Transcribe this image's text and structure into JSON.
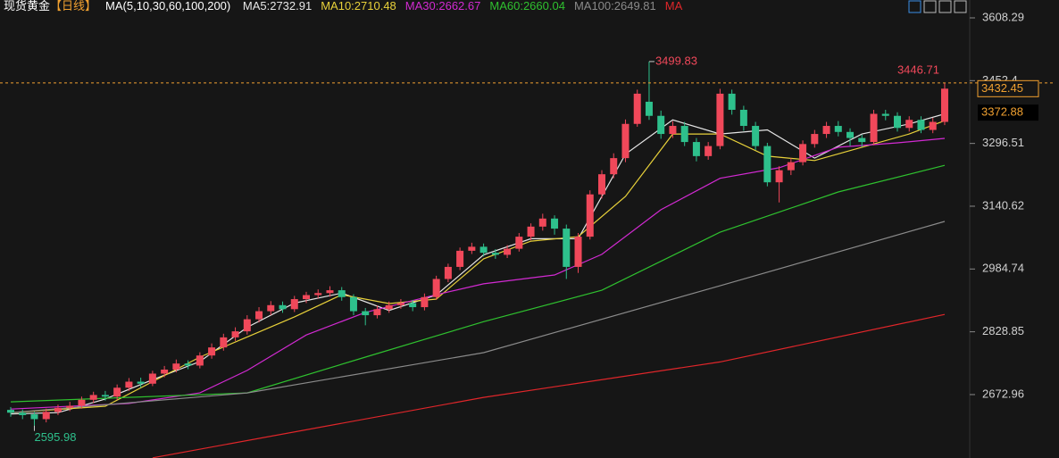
{
  "chart_data": {
    "type": "candlestick",
    "title": "现货黄金",
    "period": "【日线】",
    "indicator": "MA(5,10,30,60,100,200)",
    "up_color": "#f0485a",
    "down_color": "#2ec08c",
    "open": [
      2635,
      2628,
      2624,
      2612,
      2630,
      2640,
      2645,
      2660,
      2672,
      2668,
      2690,
      2705,
      2700,
      2725,
      2735,
      2750,
      2745,
      2770,
      2790,
      2815,
      2830,
      2860,
      2880,
      2895,
      2885,
      2910,
      2920,
      2925,
      2932,
      2915,
      2880,
      2870,
      2885,
      2895,
      2900,
      2890,
      2915,
      2960,
      2990,
      3030,
      3040,
      3025,
      3020,
      3035,
      3065,
      3090,
      3110,
      3085,
      2990,
      3065,
      3170,
      3220,
      3260,
      3345,
      3400,
      3365,
      3320,
      3340,
      3300,
      3265,
      3290,
      3420,
      3380,
      3340,
      3290,
      3200,
      3230,
      3250,
      3295,
      3320,
      3340,
      3325,
      3310,
      3300,
      3370,
      3365,
      3335,
      3355,
      3330,
      3350
    ],
    "high": [
      2642,
      2636,
      2630,
      2638,
      2648,
      2655,
      2668,
      2680,
      2682,
      2698,
      2714,
      2715,
      2732,
      2744,
      2760,
      2758,
      2778,
      2800,
      2824,
      2840,
      2870,
      2890,
      2905,
      2904,
      2918,
      2928,
      2934,
      2942,
      2940,
      2922,
      2888,
      2894,
      2904,
      2910,
      2908,
      2924,
      2968,
      2998,
      3038,
      3050,
      3048,
      3034,
      3044,
      3074,
      3098,
      3122,
      3118,
      3095,
      3074,
      3180,
      3230,
      3272,
      3356,
      3430,
      3499.83,
      3378,
      3352,
      3350,
      3310,
      3300,
      3432,
      3430,
      3390,
      3350,
      3298,
      3240,
      3260,
      3304,
      3330,
      3350,
      3352,
      3334,
      3318,
      3380,
      3380,
      3374,
      3364,
      3364,
      3360,
      3446.71
    ],
    "low": [
      2618,
      2612,
      2595.98,
      2604,
      2622,
      2632,
      2638,
      2652,
      2658,
      2660,
      2682,
      2690,
      2694,
      2716,
      2728,
      2736,
      2738,
      2762,
      2782,
      2806,
      2822,
      2852,
      2870,
      2876,
      2878,
      2900,
      2912,
      2916,
      2906,
      2870,
      2845,
      2862,
      2876,
      2886,
      2880,
      2882,
      2908,
      2952,
      2982,
      3022,
      3016,
      3010,
      3012,
      3028,
      3056,
      3080,
      3070,
      2960,
      2975,
      3058,
      3160,
      3210,
      3250,
      3338,
      3355,
      3308,
      3310,
      3290,
      3252,
      3256,
      3282,
      3368,
      3328,
      3280,
      3190,
      3150,
      3218,
      3242,
      3286,
      3310,
      3314,
      3290,
      3288,
      3292,
      3354,
      3326,
      3326,
      3322,
      3322,
      3342
    ],
    "close": [
      2628,
      2622,
      2612,
      2630,
      2640,
      2645,
      2660,
      2672,
      2668,
      2690,
      2705,
      2700,
      2725,
      2735,
      2750,
      2745,
      2770,
      2790,
      2815,
      2830,
      2860,
      2880,
      2895,
      2885,
      2910,
      2920,
      2925,
      2932,
      2915,
      2880,
      2870,
      2885,
      2895,
      2900,
      2890,
      2915,
      2960,
      2990,
      3030,
      3040,
      3025,
      3020,
      3035,
      3065,
      3090,
      3110,
      3085,
      2990,
      3065,
      3170,
      3220,
      3260,
      3345,
      3420,
      3365,
      3320,
      3340,
      3300,
      3265,
      3290,
      3420,
      3380,
      3340,
      3290,
      3200,
      3230,
      3250,
      3295,
      3320,
      3340,
      3325,
      3310,
      3300,
      3370,
      3365,
      3335,
      3355,
      3330,
      3350,
      3432.45
    ],
    "series": [
      {
        "name": "MA5:2732.91",
        "color": "#e6e6e6",
        "x": [
          0,
          4,
          8,
          12,
          16,
          20,
          24,
          28,
          32,
          36,
          40,
          44,
          48,
          52,
          56,
          60,
          64,
          68,
          72,
          76,
          79
        ],
        "values": [
          2625,
          2628,
          2662,
          2710,
          2755,
          2840,
          2900,
          2925,
          2882,
          2920,
          3020,
          3060,
          3060,
          3270,
          3355,
          3320,
          3330,
          3260,
          3320,
          3345,
          3370
        ]
      },
      {
        "name": "MA10:2710.48",
        "color": "#e8d13a",
        "x": [
          0,
          8,
          16,
          24,
          28,
          32,
          36,
          40,
          44,
          48,
          52,
          56,
          60,
          64,
          68,
          72,
          76,
          79
        ],
        "values": [
          2628,
          2644,
          2766,
          2866,
          2921,
          2899,
          2910,
          3010,
          3054,
          3065,
          3165,
          3320,
          3320,
          3265,
          3254,
          3287,
          3320,
          3353
        ]
      },
      {
        "name": "MA30:2662.67",
        "color": "#d22ad2",
        "x": [
          0,
          10,
          16,
          20,
          25,
          30,
          36,
          40,
          46,
          50,
          55,
          60,
          65,
          70,
          75,
          79
        ],
        "values": [
          2637,
          2651,
          2677,
          2733,
          2821,
          2877,
          2921,
          2948,
          2970,
          3021,
          3132,
          3210,
          3236,
          3287,
          3298,
          3309
        ]
      },
      {
        "name": "MA60:2660.04",
        "color": "#2fc12f",
        "x": [
          0,
          20,
          30,
          40,
          50,
          60,
          70,
          79
        ],
        "values": [
          2655,
          2677,
          2766,
          2854,
          2932,
          3076,
          3176,
          3242
        ]
      },
      {
        "name": "MA100:2649.81",
        "color": "#8a8a8a",
        "x": [
          0,
          20,
          40,
          60,
          79
        ],
        "values": [
          2628,
          2677,
          2777,
          2943,
          3103
        ]
      },
      {
        "name": "MA",
        "color": "#e0262a",
        "x": [
          12,
          40,
          60,
          79
        ],
        "values": [
          2516,
          2666,
          2754,
          2872
        ]
      }
    ],
    "price_tags": [
      3372.88
    ],
    "ylim": [
      2515.5,
      3652.6
    ],
    "yticks": [
      2672.96,
      2828.85,
      2984.74,
      3140.62,
      3296.51,
      3452.4,
      3608.29
    ]
  }
}
